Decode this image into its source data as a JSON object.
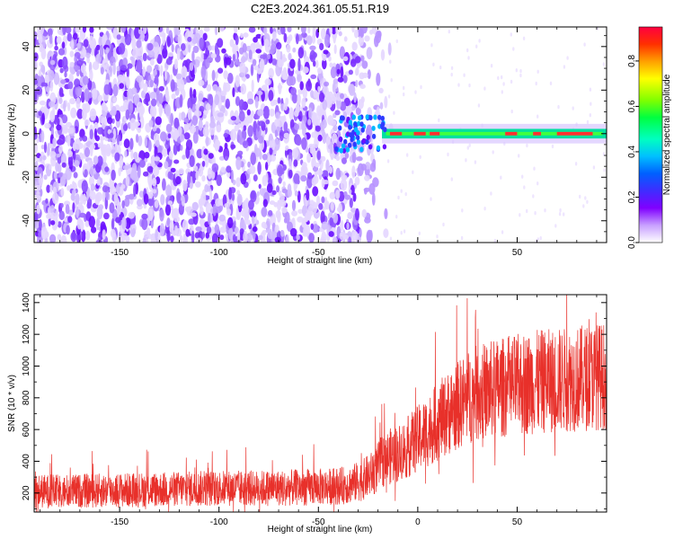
{
  "figure_title": "C2E3.2024.361.05.51.R19",
  "colors": {
    "snr_line": "#e8302a",
    "colormap": [
      "#ffffff",
      "#c8a0ff",
      "#8000ff",
      "#3f2cff",
      "#0060ff",
      "#00c0ff",
      "#00ffc0",
      "#00ff40",
      "#80ff00",
      "#ffff00",
      "#ffa000",
      "#ff3000",
      "#ff0040"
    ]
  },
  "chart_data": [
    {
      "type": "heatmap",
      "title": "C2E3.2024.361.05.51.R19",
      "xlabel": "Height of straight line (km)",
      "ylabel": "Frequency (Hz)",
      "xlim": [
        -193,
        95
      ],
      "ylim": [
        -50,
        49
      ],
      "xticks": [
        -150,
        -100,
        -50,
        0,
        50
      ],
      "yticks": [
        -40,
        -20,
        0,
        20,
        40
      ],
      "grid": false,
      "colorbar": {
        "label": "Normalized spectral amplitude",
        "range": [
          0,
          0.95
        ],
        "ticks": [
          0.0,
          0.2,
          0.4,
          0.6,
          0.8
        ],
        "colormap": "rainbow (white-purple-blue-cyan-green-yellow-red-magenta)"
      },
      "features": [
        {
          "description": "scattered low-amplitude purple noise across all frequencies",
          "x_range": [
            -193,
            -20
          ],
          "amplitude": [
            0.05,
            0.2
          ]
        },
        {
          "description": "narrow carrier line near 0 Hz with strong amplitude",
          "x_range": [
            -40,
            95
          ],
          "frequency_hz": 0,
          "amplitude": [
            0.4,
            0.9
          ]
        }
      ]
    },
    {
      "type": "line",
      "xlabel": "Height of straight line (km)",
      "ylabel": "SNR (10 * v/v)",
      "xlim": [
        -193,
        95
      ],
      "ylim": [
        80,
        1450
      ],
      "xticks": [
        -150,
        -100,
        -50,
        0,
        50
      ],
      "yticks": [
        200,
        400,
        600,
        800,
        1000,
        1200,
        1400
      ],
      "grid": false,
      "x": [
        -193,
        -180,
        -160,
        -140,
        -120,
        -100,
        -80,
        -60,
        -45,
        -35,
        -28,
        -22,
        -18,
        -14,
        -10,
        -6,
        -2,
        2,
        6,
        10,
        15,
        20,
        25,
        30,
        40,
        50,
        60,
        70,
        80,
        90,
        95
      ],
      "y": [
        210,
        210,
        215,
        220,
        225,
        230,
        230,
        235,
        240,
        250,
        280,
        330,
        400,
        430,
        450,
        480,
        520,
        560,
        600,
        650,
        700,
        750,
        800,
        830,
        860,
        880,
        900,
        910,
        920,
        935,
        940
      ]
    }
  ]
}
